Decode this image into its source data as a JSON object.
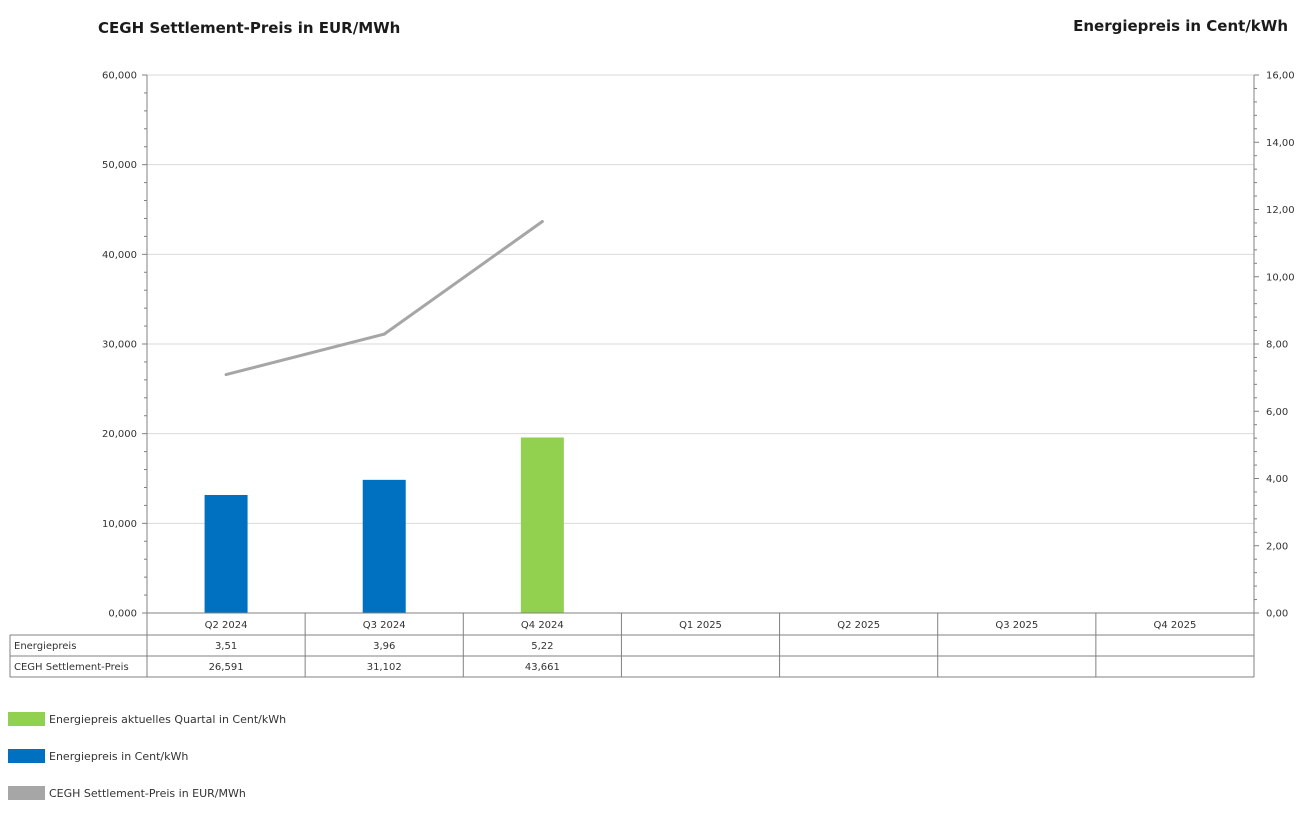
{
  "header": {
    "left_title": "CEGH Settlement-Preis in EUR/MWh",
    "right_title": "Energiepreis in Cent/kWh"
  },
  "chart_data": {
    "type": "bar",
    "categories": [
      "Q2 2024",
      "Q3 2024",
      "Q4 2024",
      "Q1 2025",
      "Q2 2025",
      "Q3 2025",
      "Q4 2025"
    ],
    "series": [
      {
        "name": "Energiepreis",
        "kind": "bar",
        "axis": "right",
        "values": [
          3.51,
          3.96,
          5.22,
          null,
          null,
          null,
          null
        ],
        "value_labels": [
          "3,51",
          "3,96",
          "5,22",
          "",
          "",
          "",
          ""
        ]
      },
      {
        "name": "CEGH Settlement-Preis",
        "kind": "line",
        "axis": "left",
        "color": "#a6a6a6",
        "values": [
          26.591,
          31.102,
          43.661,
          null,
          null,
          null,
          null
        ],
        "value_labels": [
          "26,591",
          "31,102",
          "43,661",
          "",
          "",
          "",
          ""
        ]
      }
    ],
    "bar_colors": [
      "#0070c0",
      "#0070c0",
      "#92d050",
      null,
      null,
      null,
      null
    ],
    "y_left": {
      "min": 0,
      "max": 60,
      "step": 10,
      "tick_labels": [
        "0,000",
        "10,000",
        "20,000",
        "30,000",
        "40,000",
        "50,000",
        "60,000"
      ]
    },
    "y_right": {
      "min": 0,
      "max": 16,
      "step": 2,
      "tick_labels": [
        "0,00",
        "2,00",
        "4,00",
        "6,00",
        "8,00",
        "10,00",
        "12,00",
        "14,00",
        "16,00"
      ]
    },
    "grid": true,
    "data_table": true,
    "legend": {
      "position": "bottom-left",
      "entries": [
        {
          "label": "Energiepreis aktuelles Quartal in Cent/kWh",
          "color": "#92d050"
        },
        {
          "label": "Energiepreis in Cent/kWh",
          "color": "#0070c0"
        },
        {
          "label": "CEGH Settlement-Preis in EUR/MWh",
          "color": "#a6a6a6"
        }
      ]
    }
  }
}
